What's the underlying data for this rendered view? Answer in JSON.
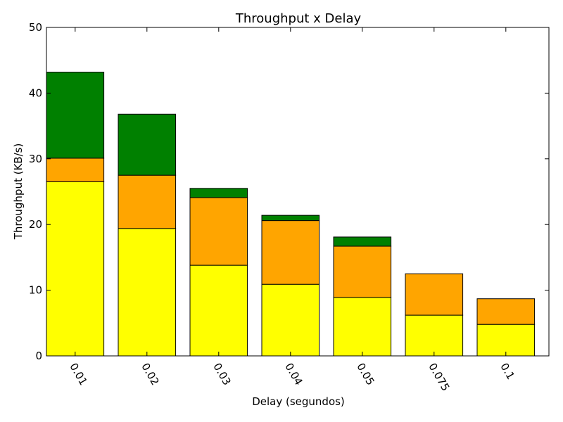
{
  "chart_data": {
    "type": "bar",
    "stacked": true,
    "title": "Throughput x Delay",
    "xlabel": "Delay (segundos)",
    "ylabel": "Throughput (KB/s)",
    "ylim": [
      0,
      50
    ],
    "yticks": [
      0,
      10,
      20,
      30,
      40,
      50
    ],
    "categories": [
      "0.01",
      "0.02",
      "0.03",
      "0.04",
      "0.05",
      "0.075",
      "0.1"
    ],
    "grid": false,
    "legend": "none",
    "series": [
      {
        "color": "#ffff00",
        "values": [
          26.5,
          19.4,
          13.8,
          10.9,
          8.9,
          6.2,
          4.8
        ]
      },
      {
        "color": "#ffa500",
        "values": [
          3.6,
          8.1,
          10.3,
          9.7,
          7.8,
          6.3,
          3.9
        ]
      },
      {
        "color": "#008000",
        "values": [
          13.1,
          9.3,
          1.4,
          0.8,
          1.4,
          0,
          0
        ]
      }
    ]
  }
}
